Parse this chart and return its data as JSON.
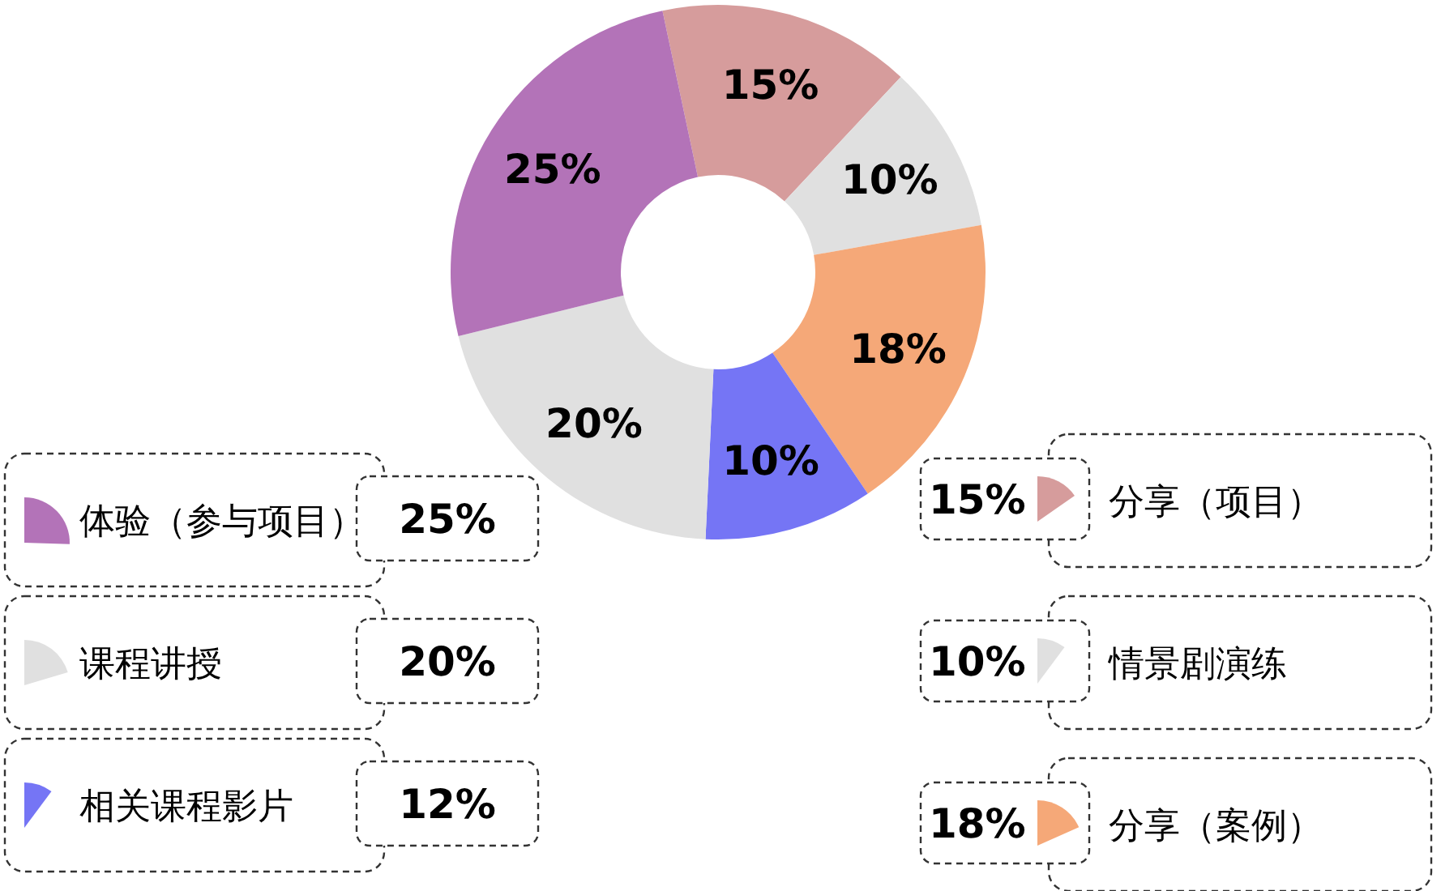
{
  "chart_data": {
    "type": "donut",
    "categories": [
      "分享（项目）",
      "情景剧演练",
      "分享（案例）",
      "相关课程影片",
      "课程讲授",
      "体验（参与项目）"
    ],
    "values": [
      15,
      10,
      18,
      10,
      20,
      25
    ],
    "colors": [
      "#d69c9c",
      "#e0e0e0",
      "#f5a878",
      "#7575f5",
      "#e0e0e0",
      "#b373b8"
    ],
    "value_labels": [
      "15%",
      "10%",
      "18%",
      "10%",
      "20%",
      "25%"
    ],
    "legend": "bottom",
    "annotations": [
      "15%",
      "10%",
      "18%",
      "12%",
      "20%",
      "25%"
    ]
  }
}
